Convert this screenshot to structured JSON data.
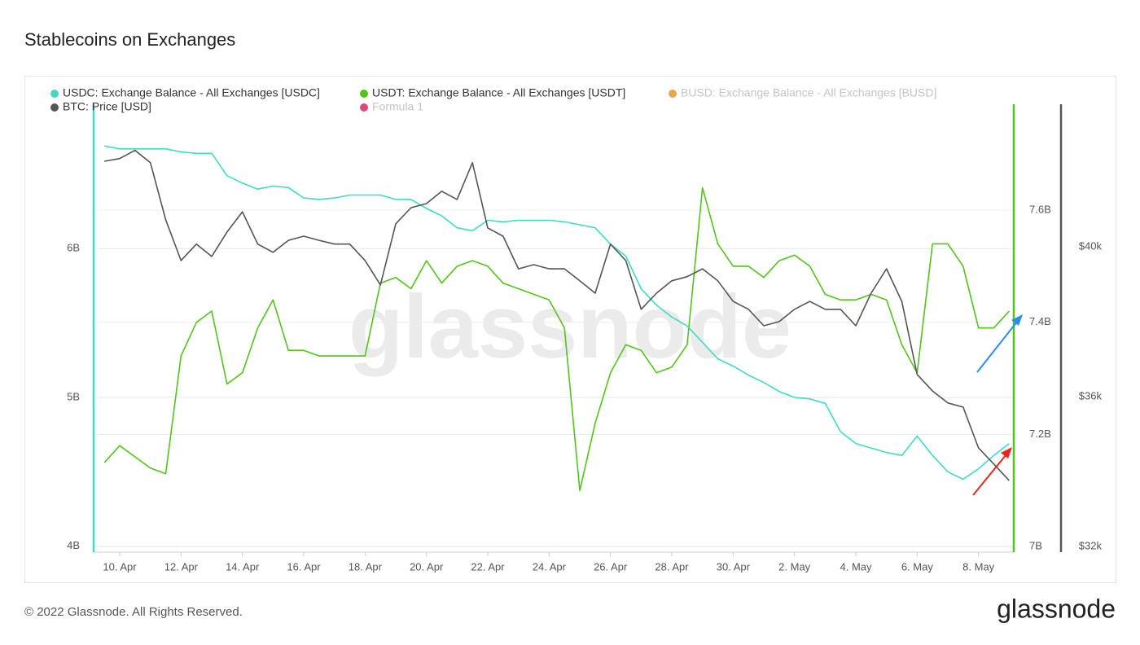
{
  "chart_data": {
    "type": "line",
    "title": "Stablecoins on Exchanges",
    "watermark": "glassnode",
    "footer": "© 2022 Glassnode. All Rights Reserved.",
    "brand": "glassnode",
    "categories": [
      null,
      "10. Apr",
      null,
      null,
      null,
      "12. Apr",
      null,
      null,
      null,
      "14. Apr",
      null,
      null,
      null,
      "16. Apr",
      null,
      null,
      null,
      "18. Apr",
      null,
      null,
      null,
      "20. Apr",
      null,
      null,
      null,
      "22. Apr",
      null,
      null,
      null,
      "24. Apr",
      null,
      null,
      null,
      "26. Apr",
      null,
      null,
      null,
      "28. Apr",
      null,
      null,
      null,
      "30. Apr",
      null,
      null,
      null,
      "2. May",
      null,
      null,
      null,
      "4. May",
      null,
      null,
      null,
      "6. May",
      null,
      null,
      null,
      "8. May",
      null,
      null
    ],
    "ylim": [
      3.96,
      6.97
    ],
    "yticks": [
      {
        "value": 4,
        "label": "4B"
      },
      {
        "value": 5,
        "label": "5B"
      },
      {
        "value": 6,
        "label": "6B"
      }
    ],
    "y2lim": [
      6.99,
      7.789
    ],
    "y2ticks": [
      {
        "value": 7,
        "label": "7B"
      },
      {
        "value": 7.2,
        "label": "7.2B"
      },
      {
        "value": 7.4,
        "label": "7.4B"
      },
      {
        "value": 7.6,
        "label": "7.6B"
      }
    ],
    "y3lim": [
      31.85,
      43.8
    ],
    "y3ticks": [
      {
        "value": 32,
        "label": "$32k"
      },
      {
        "value": 36,
        "label": "$36k"
      },
      {
        "value": 40,
        "label": "$40k"
      }
    ],
    "grid": true,
    "series": [
      {
        "name": "USDC: Exchange Balance - All Exchanges [USDC]",
        "color": "#3fdcc2",
        "axis": "y",
        "values": [
          6.69,
          6.67,
          6.67,
          6.67,
          6.67,
          6.65,
          6.64,
          6.64,
          6.49,
          6.44,
          6.4,
          6.42,
          6.41,
          6.34,
          6.33,
          6.34,
          6.36,
          6.36,
          6.36,
          6.33,
          6.33,
          6.27,
          6.22,
          6.14,
          6.12,
          6.19,
          6.18,
          6.19,
          6.19,
          6.19,
          6.18,
          6.16,
          6.14,
          6.03,
          5.95,
          5.73,
          5.62,
          5.54,
          5.48,
          5.37,
          5.26,
          5.21,
          5.15,
          5.1,
          5.04,
          5.0,
          4.99,
          4.96,
          4.77,
          4.69,
          4.66,
          4.63,
          4.61,
          4.74,
          4.61,
          4.5,
          4.45,
          4.52,
          4.61,
          4.69
        ]
      },
      {
        "name": "USDT: Exchange Balance - All Exchanges [USDT]",
        "color": "#52c41a",
        "axis": "y2",
        "values": [
          7.15,
          7.18,
          7.16,
          7.14,
          7.13,
          7.34,
          7.4,
          7.42,
          7.29,
          7.31,
          7.39,
          7.44,
          7.35,
          7.35,
          7.34,
          7.34,
          7.34,
          7.34,
          7.47,
          7.48,
          7.46,
          7.51,
          7.47,
          7.5,
          7.51,
          7.5,
          7.47,
          7.46,
          7.45,
          7.44,
          7.39,
          7.1,
          7.22,
          7.31,
          7.36,
          7.35,
          7.31,
          7.32,
          7.36,
          7.64,
          7.54,
          7.5,
          7.5,
          7.48,
          7.51,
          7.52,
          7.5,
          7.45,
          7.44,
          7.44,
          7.45,
          7.44,
          7.36,
          7.31,
          7.54,
          7.54,
          7.5,
          7.39,
          7.39,
          7.42
        ]
      },
      {
        "name": "BTC: Price [USD]",
        "color": "#555555",
        "axis": "y3",
        "values": [
          42.28,
          42.35,
          42.57,
          42.24,
          40.72,
          39.63,
          40.07,
          39.74,
          40.39,
          40.93,
          40.07,
          39.85,
          40.17,
          40.28,
          40.17,
          40.07,
          40.07,
          39.63,
          38.98,
          40.61,
          41.04,
          41.15,
          41.48,
          41.26,
          42.24,
          40.5,
          40.28,
          39.41,
          39.52,
          39.41,
          39.41,
          39.09,
          38.76,
          40.07,
          39.63,
          38.33,
          38.76,
          39.09,
          39.2,
          39.41,
          39.09,
          38.54,
          38.33,
          37.89,
          38.0,
          38.33,
          38.54,
          38.33,
          38.33,
          37.89,
          38.76,
          39.41,
          38.54,
          36.59,
          36.15,
          35.83,
          35.72,
          34.63,
          34.2,
          33.76
        ]
      }
    ],
    "inactive_legend": [
      {
        "name": "BUSD: Exchange Balance - All Exchanges [BUSD]",
        "color": "#e8a64e"
      },
      {
        "name": "Formula 1",
        "color": "#e0457b"
      }
    ]
  }
}
